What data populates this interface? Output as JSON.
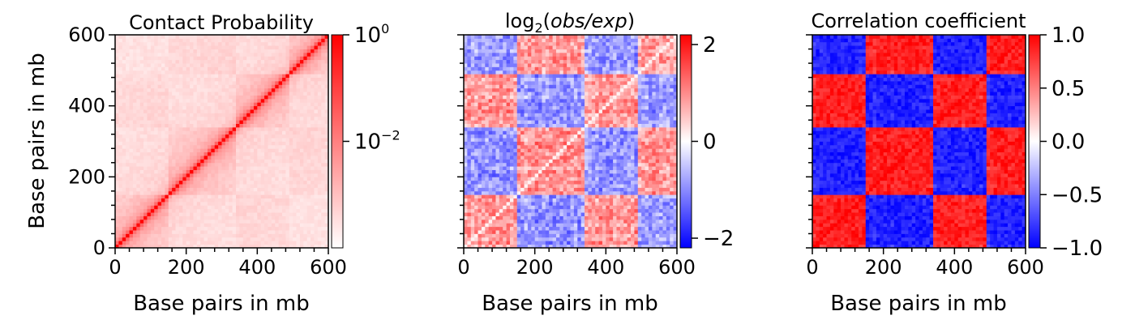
{
  "chart_data": [
    {
      "type": "heatmap",
      "title": "Contact Probability",
      "xlabel": "Base pairs in mb",
      "ylabel": "Base pairs in mb",
      "xlim": [
        0,
        600
      ],
      "ylim": [
        0,
        600
      ],
      "x_ticks": [
        "0",
        "200",
        "400",
        "600"
      ],
      "y_ticks": [
        "0",
        "200",
        "400",
        "600"
      ],
      "colormap": "white-to-red",
      "colorbar": {
        "scale": "log",
        "range": [
          0.0001,
          1
        ],
        "ticks": [
          "10^0",
          "10^-2"
        ]
      },
      "block_boundaries_mb": [
        0,
        150,
        340,
        490,
        600
      ]
    },
    {
      "type": "heatmap",
      "title": "log2(obs/exp)",
      "title_parts": [
        "log",
        "2",
        "(",
        "obs/exp",
        ")"
      ],
      "xlabel": "Base pairs in mb",
      "xlim": [
        0,
        600
      ],
      "ylim": [
        0,
        600
      ],
      "x_ticks": [
        "0",
        "200",
        "400",
        "600"
      ],
      "colormap": "blue-white-red",
      "colorbar": {
        "scale": "linear",
        "range": [
          -2.2,
          2.2
        ],
        "ticks": [
          "2",
          "0",
          "−2"
        ]
      },
      "block_boundaries_mb": [
        0,
        150,
        340,
        490,
        600
      ]
    },
    {
      "type": "heatmap",
      "title": "Correlation coefficient",
      "xlabel": "Base pairs in mb",
      "xlim": [
        0,
        600
      ],
      "ylim": [
        0,
        600
      ],
      "x_ticks": [
        "0",
        "200",
        "400",
        "600"
      ],
      "colormap": "blue-white-red",
      "colorbar": {
        "scale": "linear",
        "range": [
          -1.0,
          1.0
        ],
        "ticks": [
          "1.0",
          "0.5",
          "0.0",
          "−0.5",
          "−1.0"
        ]
      },
      "block_boundaries_mb": [
        0,
        150,
        340,
        490,
        600
      ]
    }
  ],
  "colors": {
    "red": "#ff0000",
    "blue": "#0000ff",
    "white": "#ffffff",
    "axis": "#000000"
  }
}
